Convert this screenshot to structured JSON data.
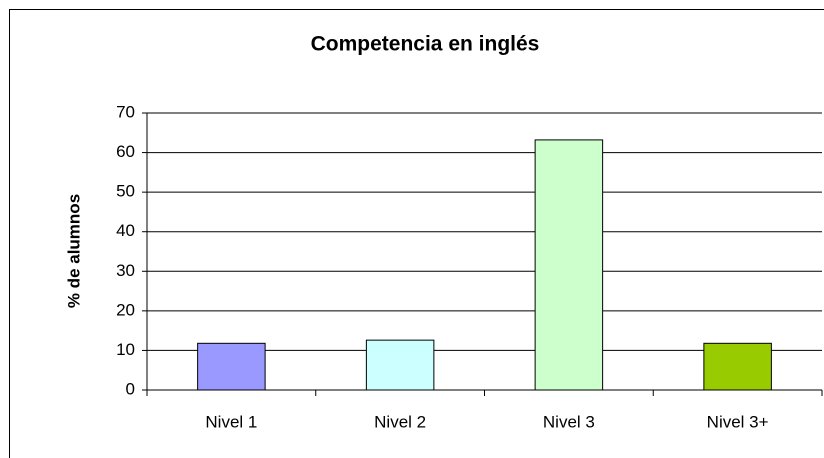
{
  "chart_data": {
    "type": "bar",
    "title": "Competencia en inglés",
    "y_label": "% de alumnos",
    "categories": [
      "Nivel 1",
      "Nivel 2",
      "Nivel 3",
      "Nivel 3+"
    ],
    "values": [
      11.8,
      12.6,
      63.2,
      11.8
    ],
    "colors": [
      "#9999ff",
      "#ccffff",
      "#ccffcc",
      "#99cc00"
    ],
    "ylim": [
      0,
      70
    ],
    "yticks": [
      0,
      10,
      20,
      30,
      40,
      50,
      60,
      70
    ],
    "grid": true
  }
}
